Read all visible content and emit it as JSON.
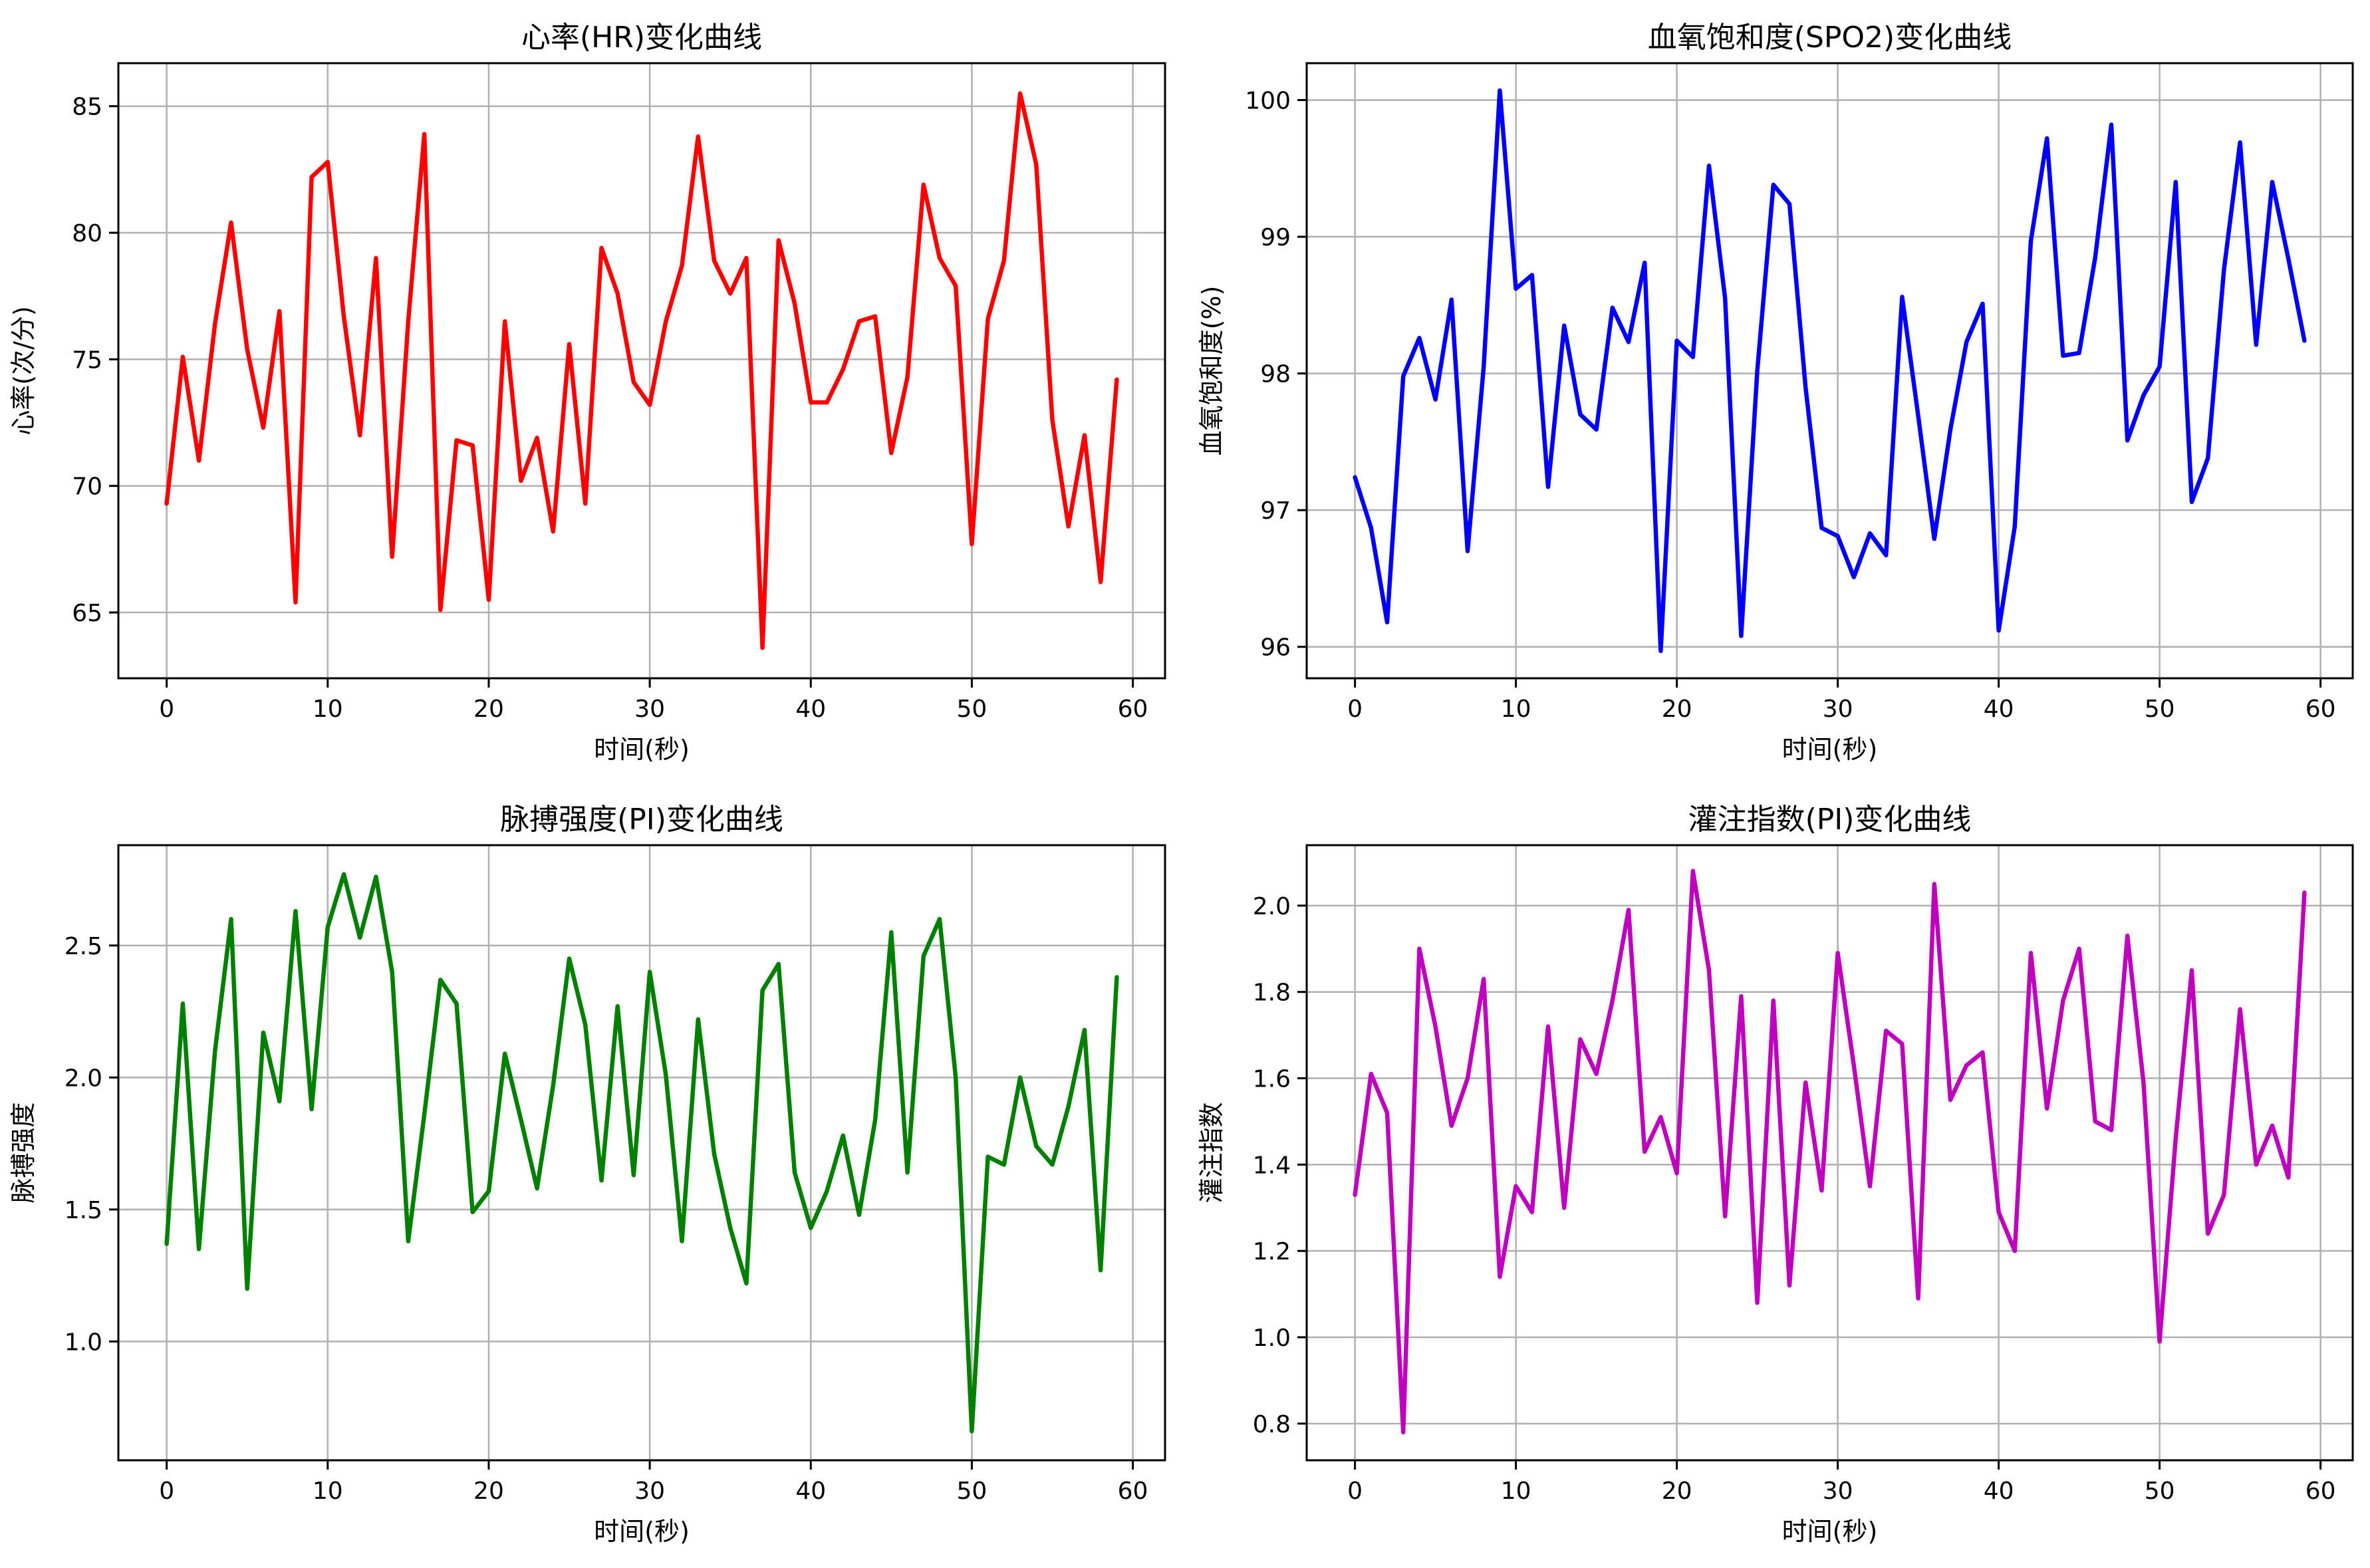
{
  "chart_data": [
    {
      "type": "line",
      "title": "心率(HR)变化曲线",
      "xlabel": "时间(秒)",
      "ylabel": "心率(次/分)",
      "color": "#ff0000",
      "xlim": [
        -3,
        62
      ],
      "ylim": [
        62.4,
        86.7
      ],
      "xticks": [
        0,
        10,
        20,
        30,
        40,
        50,
        60
      ],
      "yticks": [
        65,
        70,
        75,
        80,
        85
      ],
      "grid": true,
      "x": [
        0,
        1,
        2,
        3,
        4,
        5,
        6,
        7,
        8,
        9,
        10,
        11,
        12,
        13,
        14,
        15,
        16,
        17,
        18,
        19,
        20,
        21,
        22,
        23,
        24,
        25,
        26,
        27,
        28,
        29,
        30,
        31,
        32,
        33,
        34,
        35,
        36,
        37,
        38,
        39,
        40,
        41,
        42,
        43,
        44,
        45,
        46,
        47,
        48,
        49,
        50,
        51,
        52,
        53,
        54,
        55,
        56,
        57,
        58,
        59
      ],
      "series": [
        {
          "name": "HR",
          "values": [
            69.3,
            75.1,
            71.0,
            76.4,
            80.4,
            75.4,
            72.3,
            76.9,
            65.4,
            82.2,
            82.8,
            76.7,
            72.0,
            79.0,
            67.2,
            76.5,
            83.9,
            65.1,
            71.8,
            71.6,
            65.5,
            76.5,
            70.2,
            71.9,
            68.2,
            75.6,
            69.3,
            79.4,
            77.6,
            74.1,
            73.2,
            76.5,
            78.7,
            83.8,
            78.9,
            77.6,
            79.0,
            63.6,
            79.7,
            77.2,
            73.3,
            73.3,
            74.6,
            76.5,
            76.7,
            71.3,
            74.3,
            81.9,
            79.0,
            77.9,
            67.7,
            76.6,
            78.9,
            85.5,
            82.7,
            72.6,
            68.4,
            72.0,
            66.2,
            74.2
          ]
        }
      ]
    },
    {
      "type": "line",
      "title": "血氧饱和度(SPO2)变化曲线",
      "xlabel": "时间(秒)",
      "ylabel": "血氧饱和度(%)",
      "color": "#0000ff",
      "xlim": [
        -3,
        62
      ],
      "ylim": [
        95.77,
        100.27
      ],
      "xticks": [
        0,
        10,
        20,
        30,
        40,
        50,
        60
      ],
      "yticks": [
        96,
        97,
        98,
        99,
        100
      ],
      "grid": true,
      "x": [
        0,
        1,
        2,
        3,
        4,
        5,
        6,
        7,
        8,
        9,
        10,
        11,
        12,
        13,
        14,
        15,
        16,
        17,
        18,
        19,
        20,
        21,
        22,
        23,
        24,
        25,
        26,
        27,
        28,
        29,
        30,
        31,
        32,
        33,
        34,
        35,
        36,
        37,
        38,
        39,
        40,
        41,
        42,
        43,
        44,
        45,
        46,
        47,
        48,
        49,
        50,
        51,
        52,
        53,
        54,
        55,
        56,
        57,
        58,
        59
      ],
      "series": [
        {
          "name": "SPO2",
          "values": [
            97.24,
            96.87,
            96.18,
            97.98,
            98.26,
            97.81,
            98.54,
            96.7,
            98.05,
            100.07,
            98.62,
            98.72,
            97.17,
            98.35,
            97.7,
            97.59,
            98.48,
            98.23,
            98.81,
            95.97,
            98.24,
            98.12,
            99.52,
            98.55,
            96.08,
            98.02,
            99.38,
            99.24,
            97.9,
            96.87,
            96.81,
            96.51,
            96.83,
            96.67,
            98.56,
            97.69,
            96.79,
            97.59,
            98.23,
            98.51,
            96.12,
            96.88,
            98.97,
            99.72,
            98.13,
            98.15,
            98.85,
            99.82,
            97.51,
            97.84,
            98.05,
            99.4,
            97.06,
            97.38,
            98.76,
            99.69,
            98.21,
            99.4,
            98.84,
            98.24
          ]
        }
      ]
    },
    {
      "type": "line",
      "title": "脉搏强度(PI)变化曲线",
      "xlabel": "时间(秒)",
      "ylabel": "脉搏强度",
      "color": "#008000",
      "xlim": [
        -3,
        62
      ],
      "ylim": [
        0.55,
        2.88
      ],
      "xticks": [
        0,
        10,
        20,
        30,
        40,
        50,
        60
      ],
      "yticks": [
        1.0,
        1.5,
        2.0,
        2.5
      ],
      "grid": true,
      "x": [
        0,
        1,
        2,
        3,
        4,
        5,
        6,
        7,
        8,
        9,
        10,
        11,
        12,
        13,
        14,
        15,
        16,
        17,
        18,
        19,
        20,
        21,
        22,
        23,
        24,
        25,
        26,
        27,
        28,
        29,
        30,
        31,
        32,
        33,
        34,
        35,
        36,
        37,
        38,
        39,
        40,
        41,
        42,
        43,
        44,
        45,
        46,
        47,
        48,
        49,
        50,
        51,
        52,
        53,
        54,
        55,
        56,
        57,
        58,
        59
      ],
      "series": [
        {
          "name": "PI",
          "values": [
            1.37,
            2.28,
            1.35,
            2.1,
            2.6,
            1.2,
            2.17,
            1.91,
            2.63,
            1.88,
            2.57,
            2.77,
            2.53,
            2.76,
            2.4,
            1.38,
            1.86,
            2.37,
            2.28,
            1.49,
            1.57,
            2.09,
            1.84,
            1.58,
            1.97,
            2.45,
            2.2,
            1.61,
            2.27,
            1.63,
            2.4,
            2.01,
            1.38,
            2.22,
            1.71,
            1.43,
            1.22,
            2.33,
            2.43,
            1.64,
            1.43,
            1.57,
            1.78,
            1.48,
            1.84,
            2.55,
            1.64,
            2.46,
            2.6,
            2.0,
            0.66,
            1.7,
            1.67,
            2.0,
            1.74,
            1.67,
            1.89,
            2.18,
            1.27,
            2.38
          ]
        }
      ]
    },
    {
      "type": "line",
      "title": "灌注指数(PI)变化曲线",
      "xlabel": "时间(秒)",
      "ylabel": "灌注指数",
      "color": "#bf00bf",
      "xlim": [
        -3,
        62
      ],
      "ylim": [
        0.715,
        2.14
      ],
      "xticks": [
        0,
        10,
        20,
        30,
        40,
        50,
        60
      ],
      "yticks": [
        0.8,
        1.0,
        1.2,
        1.4,
        1.6,
        1.8,
        2.0
      ],
      "grid": true,
      "x": [
        0,
        1,
        2,
        3,
        4,
        5,
        6,
        7,
        8,
        9,
        10,
        11,
        12,
        13,
        14,
        15,
        16,
        17,
        18,
        19,
        20,
        21,
        22,
        23,
        24,
        25,
        26,
        27,
        28,
        29,
        30,
        31,
        32,
        33,
        34,
        35,
        36,
        37,
        38,
        39,
        40,
        41,
        42,
        43,
        44,
        45,
        46,
        47,
        48,
        49,
        50,
        51,
        52,
        53,
        54,
        55,
        56,
        57,
        58,
        59
      ],
      "series": [
        {
          "name": "PI",
          "values": [
            1.33,
            1.61,
            1.52,
            0.78,
            1.9,
            1.72,
            1.49,
            1.6,
            1.83,
            1.14,
            1.35,
            1.29,
            1.72,
            1.3,
            1.69,
            1.61,
            1.78,
            1.99,
            1.43,
            1.51,
            1.38,
            2.08,
            1.85,
            1.28,
            1.79,
            1.08,
            1.78,
            1.12,
            1.59,
            1.34,
            1.89,
            1.63,
            1.35,
            1.71,
            1.68,
            1.09,
            2.05,
            1.55,
            1.63,
            1.66,
            1.29,
            1.2,
            1.89,
            1.53,
            1.78,
            1.9,
            1.5,
            1.48,
            1.93,
            1.59,
            0.99,
            1.46,
            1.85,
            1.24,
            1.33,
            1.76,
            1.4,
            1.49,
            1.37,
            2.03
          ]
        }
      ]
    }
  ]
}
